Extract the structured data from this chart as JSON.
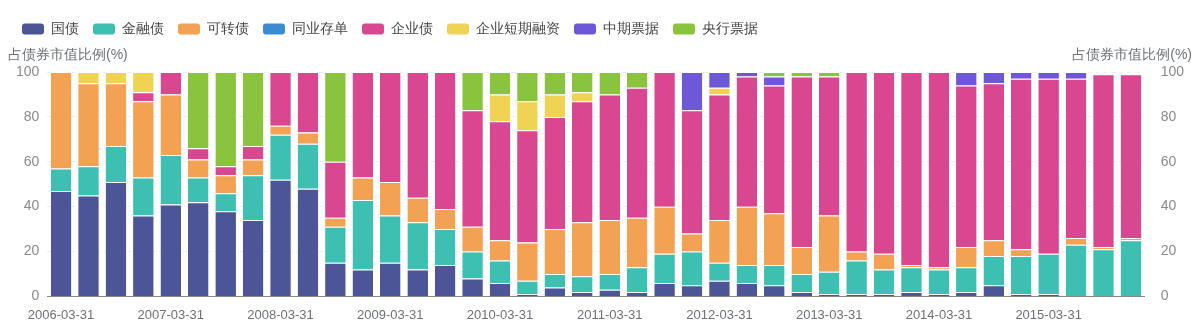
{
  "chart_data": {
    "type": "bar",
    "stacked": true,
    "ylabel": "占债券市值比例(%)",
    "y2label": "占债券市值比例(%)",
    "categories": [
      "2006-03-31",
      null,
      null,
      null,
      "2007-03-31",
      null,
      null,
      null,
      "2008-03-31",
      null,
      null,
      null,
      "2009-03-31",
      null,
      null,
      null,
      "2010-03-31",
      null,
      null,
      null,
      "2011-03-31",
      null,
      null,
      null,
      "2012-03-31",
      null,
      null,
      null,
      "2013-03-31",
      null,
      null,
      null,
      "2014-03-31",
      null,
      null,
      null,
      "2015-03-31",
      null,
      null,
      null
    ],
    "series": [
      {
        "name": "国债",
        "color": "#4b5597",
        "values": [
          47,
          45,
          51,
          36,
          41,
          42,
          38,
          34,
          52,
          48,
          15,
          12,
          15,
          12,
          14,
          8,
          6,
          1,
          4,
          2,
          3,
          2,
          6,
          5,
          7,
          6,
          5,
          2,
          1,
          1,
          1,
          2,
          1,
          2,
          5,
          1,
          1,
          0,
          0,
          0
        ]
      },
      {
        "name": "金融债",
        "color": "#3dbfb1",
        "values": [
          10,
          13,
          16,
          17,
          22,
          11,
          8,
          20,
          20,
          20,
          16,
          31,
          21,
          21,
          16,
          12,
          10,
          6,
          6,
          7,
          7,
          11,
          13,
          15,
          8,
          8,
          9,
          8,
          10,
          15,
          11,
          11,
          11,
          11,
          13,
          17,
          18,
          23,
          21,
          25
        ]
      },
      {
        "name": "可转债",
        "color": "#f3a152",
        "values": [
          43,
          37,
          28,
          34,
          27,
          8,
          8,
          7,
          4,
          5,
          4,
          10,
          15,
          11,
          9,
          11,
          9,
          17,
          20,
          24,
          24,
          22,
          21,
          8,
          19,
          26,
          23,
          12,
          25,
          4,
          7,
          1,
          1,
          9,
          7,
          3,
          0,
          3,
          1,
          1
        ]
      },
      {
        "name": "同业存单",
        "color": "#3b8bd0",
        "values": [
          0,
          0,
          0,
          0,
          0,
          0,
          0,
          0,
          0,
          0,
          0,
          0,
          0,
          0,
          0,
          0,
          0,
          0,
          0,
          0,
          0,
          0,
          0,
          0,
          0,
          0,
          0,
          0,
          0,
          0,
          0,
          0,
          0,
          0,
          0,
          0,
          0,
          0,
          0,
          0
        ]
      },
      {
        "name": "企业债",
        "color": "#d8478f",
        "values": [
          0,
          0,
          0,
          4,
          10,
          5,
          4,
          6,
          24,
          27,
          25,
          47,
          49,
          56,
          61,
          52,
          53,
          50,
          50,
          54,
          56,
          58,
          60,
          55,
          56,
          58,
          57,
          76,
          62,
          80,
          81,
          86,
          87,
          72,
          70,
          76,
          78,
          71,
          77,
          73
        ]
      },
      {
        "name": "企业短期融资",
        "color": "#f1d354",
        "values": [
          0,
          5,
          5,
          9,
          0,
          0,
          0,
          0,
          0,
          0,
          0,
          0,
          0,
          0,
          0,
          0,
          12,
          13,
          10,
          4,
          0,
          0,
          0,
          0,
          3,
          0,
          0,
          0,
          0,
          0,
          0,
          0,
          0,
          0,
          0,
          0,
          0,
          0,
          0,
          0
        ]
      },
      {
        "name": "中期票据",
        "color": "#6f58d8",
        "values": [
          0,
          0,
          0,
          0,
          0,
          0,
          0,
          0,
          0,
          0,
          0,
          0,
          0,
          0,
          0,
          0,
          0,
          0,
          0,
          0,
          0,
          0,
          0,
          17,
          7,
          2,
          4,
          0,
          0,
          0,
          0,
          0,
          0,
          6,
          5,
          3,
          3,
          3,
          0,
          0
        ]
      },
      {
        "name": "央行票据",
        "color": "#8ac43f",
        "values": [
          0,
          0,
          0,
          0,
          0,
          34,
          42,
          33,
          0,
          0,
          40,
          0,
          0,
          0,
          0,
          17,
          10,
          13,
          10,
          9,
          10,
          7,
          0,
          0,
          0,
          0,
          2,
          2,
          2,
          0,
          0,
          0,
          0,
          0,
          0,
          0,
          0,
          0,
          0,
          0
        ]
      }
    ],
    "ylim": [
      0,
      100
    ],
    "yticks": [
      0,
      20,
      40,
      60,
      80,
      100
    ],
    "y2lim": [
      0,
      100
    ],
    "y2ticks": [
      0,
      20,
      40,
      60,
      80,
      100
    ],
    "grid": "y",
    "legend": "top left"
  }
}
